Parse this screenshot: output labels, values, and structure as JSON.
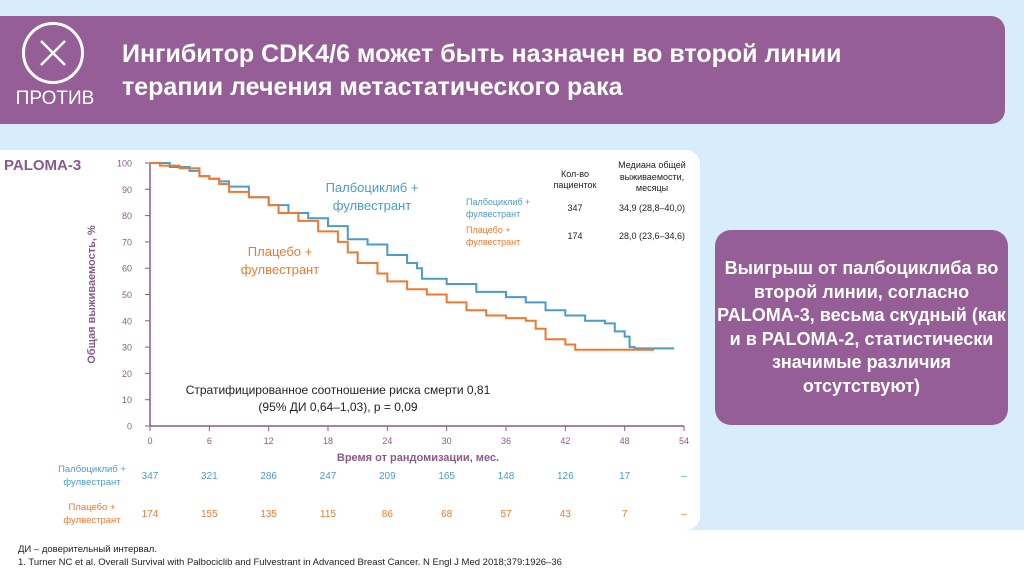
{
  "header": {
    "badge_icon": "x-circle-icon",
    "badge_label": "ПРОТИВ",
    "title_line1": "Ингибитор CDK4/6 может быть назначен во второй линии",
    "title_line2": "терапии лечения метастатического рака"
  },
  "colors": {
    "purple": "#955e96",
    "blue": "#4a9ccb",
    "orange": "#f0782f",
    "axis": "#8a5a8c"
  },
  "callout": "Выигрыш от палбоциклиба во второй линии, согласно PALOMA-3, весьма скудный (как и в PALOMA-2, статистически значимые различия отсутствуют)",
  "footnotes": [
    "ДИ – доверительный интервал.",
    "1. Turner NC et al. Overall Survival with Palbociclib and Fulvestrant in Advanced Breast Cancer. N Engl J Med 2018;379:1926–36"
  ],
  "chart_data": {
    "type": "line",
    "title": "PALOMA-3",
    "xlabel": "Время от рандомизации, мес.",
    "ylabel": "Общая выживаемость, %",
    "xlim": [
      0,
      54
    ],
    "ylim": [
      0,
      100
    ],
    "xticks": [
      0,
      6,
      12,
      18,
      24,
      30,
      36,
      42,
      48,
      54
    ],
    "yticks": [
      0,
      10,
      20,
      30,
      40,
      50,
      60,
      70,
      80,
      90,
      100
    ],
    "curve_labels": [
      {
        "line1": "Палбоциклиб +",
        "line2": "фулвестрант"
      },
      {
        "line1": "Плацебо +",
        "line2": "фулвестрант"
      }
    ],
    "series": [
      {
        "name": "Палбоциклиб + фулвестрант",
        "color": "#4a9ccb",
        "step": true,
        "x": [
          0,
          1,
          2,
          4,
          5,
          6,
          7,
          8,
          10,
          12,
          14,
          16,
          18,
          20,
          22,
          24,
          26,
          27,
          27.5,
          30,
          33,
          36,
          38,
          40,
          42,
          44,
          46,
          47,
          48,
          48.5,
          49,
          53
        ],
        "y": [
          100,
          100,
          98.5,
          97,
          95,
          94,
          93,
          91,
          87,
          84,
          81,
          79,
          76,
          71,
          69,
          65,
          62,
          60,
          56,
          54,
          51,
          49,
          47,
          44,
          42,
          40,
          39,
          36,
          34,
          30,
          29.5,
          29.5
        ]
      },
      {
        "name": "Плацебо + фулвестрант",
        "color": "#f0782f",
        "step": true,
        "x": [
          0,
          1,
          3,
          5,
          6,
          7,
          8,
          10,
          12,
          13,
          15,
          17,
          19,
          20,
          21,
          23,
          24,
          26,
          28,
          30,
          32,
          34,
          36,
          38,
          39,
          40,
          41,
          42,
          43,
          51
        ],
        "y": [
          100,
          99,
          98,
          95,
          94,
          92,
          89,
          87,
          84,
          81,
          78,
          74,
          70,
          66,
          62,
          58,
          55,
          52,
          50,
          47,
          44,
          42,
          41,
          40,
          37,
          33,
          33,
          31,
          29,
          29
        ]
      }
    ],
    "legend_table": {
      "col_n": "Кол-во пациенток",
      "col_median": "Медиана общей выживаемости, месяцы",
      "rows": [
        {
          "label1": "Палбоциклиб +",
          "label2": "фулвестрант",
          "n": "347",
          "median": "34,9 (28,8–40,0)"
        },
        {
          "label1": "Плацебо +",
          "label2": "фулвестрант",
          "n": "174",
          "median": "28,0 (23,6–34,6)"
        }
      ]
    },
    "annotation_line1": "Стратифицированное соотношение риска смерти 0,81",
    "annotation_line2": "(95% ДИ 0,64–1,03), p = 0,09",
    "at_risk": [
      {
        "label1": "Палбоциклиб +",
        "label2": "фулвестрант",
        "values": [
          "347",
          "321",
          "286",
          "247",
          "209",
          "165",
          "148",
          "126",
          "17",
          "–"
        ]
      },
      {
        "label1": "Плацебо +",
        "label2": "фулвестрант",
        "values": [
          "174",
          "155",
          "135",
          "115",
          "86",
          "68",
          "57",
          "43",
          "7",
          "–"
        ]
      }
    ]
  }
}
